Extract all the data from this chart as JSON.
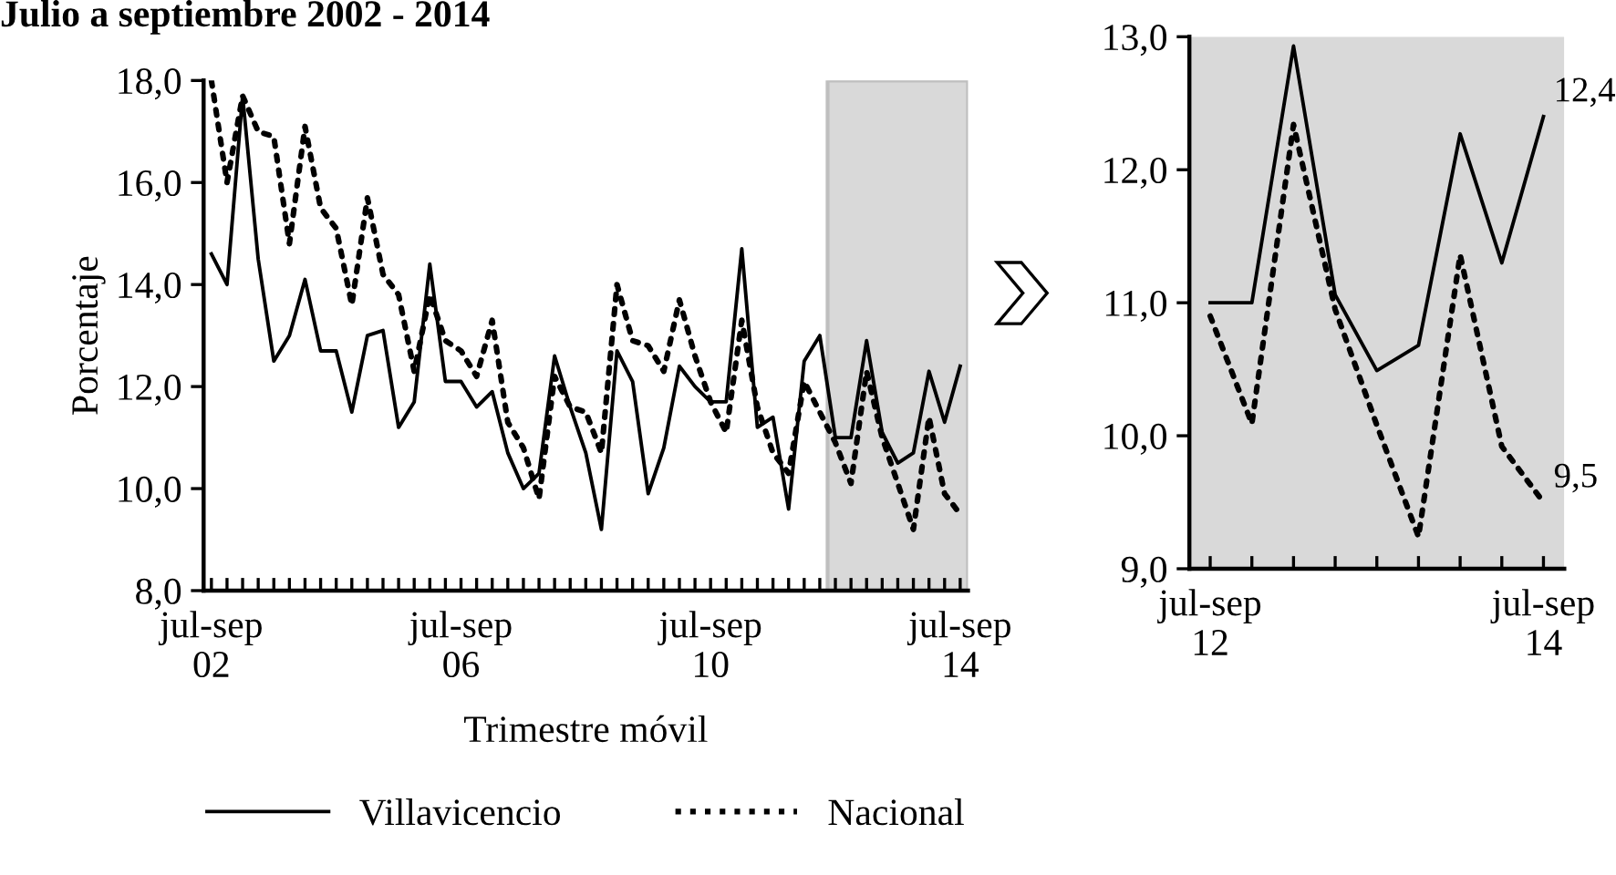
{
  "chart_data": [
    {
      "type": "line",
      "title": "Julio a septiembre 2002 - 2014",
      "xlabel": "Trimestre móvil",
      "ylabel": "Porcentaje",
      "categories": [
        "jul-sep\n02",
        null,
        null,
        null,
        null,
        null,
        null,
        null,
        null,
        null,
        null,
        null,
        null,
        null,
        null,
        null,
        "jul-sep\n06",
        null,
        null,
        null,
        null,
        null,
        null,
        null,
        null,
        null,
        null,
        null,
        null,
        null,
        null,
        null,
        "jul-sep\n10",
        null,
        null,
        null,
        null,
        null,
        null,
        null,
        null,
        null,
        null,
        null,
        null,
        null,
        null,
        null,
        "jul-sep\n14"
      ],
      "series": [
        {
          "name": "Villavicencio",
          "color": "#000000",
          "line_style": "solid",
          "values": [
            14.6,
            14.0,
            17.7,
            14.5,
            12.5,
            13.0,
            14.1,
            12.7,
            12.7,
            11.5,
            13.0,
            13.1,
            11.2,
            11.7,
            14.4,
            12.1,
            12.1,
            11.6,
            11.9,
            10.7,
            10.0,
            10.3,
            12.6,
            11.6,
            10.7,
            9.2,
            12.7,
            12.1,
            9.9,
            10.8,
            12.4,
            12.0,
            11.7,
            11.7,
            14.7,
            11.2,
            11.4,
            9.6,
            12.5,
            13.0,
            11.0,
            11.0,
            12.9,
            11.1,
            10.5,
            10.7,
            12.3,
            11.3,
            12.4
          ]
        },
        {
          "name": "Nacional",
          "color": "#000000",
          "line_style": "dotted",
          "values": [
            18.0,
            16.0,
            17.7,
            17.0,
            16.9,
            14.8,
            17.1,
            15.5,
            15.1,
            13.6,
            15.7,
            14.2,
            13.8,
            12.3,
            13.8,
            12.9,
            12.7,
            12.2,
            13.3,
            11.3,
            10.8,
            9.8,
            12.2,
            11.6,
            11.5,
            10.7,
            14.0,
            12.9,
            12.8,
            12.3,
            13.7,
            12.6,
            11.7,
            11.1,
            13.3,
            11.6,
            10.7,
            10.3,
            12.1,
            11.5,
            10.9,
            10.1,
            12.3,
            11.0,
            10.1,
            9.2,
            11.4,
            9.9,
            9.5
          ]
        }
      ],
      "ylim": [
        8,
        18
      ],
      "yticks": [
        {
          "value": 8,
          "label": "8,0"
        },
        {
          "value": 10,
          "label": "10,0"
        },
        {
          "value": 12,
          "label": "12,0"
        },
        {
          "value": 14,
          "label": "14,0"
        },
        {
          "value": 16,
          "label": "16,0"
        },
        {
          "value": 18,
          "label": "18,0"
        }
      ],
      "grid": false,
      "legend": "bottom",
      "marker": "none"
    },
    {
      "type": "line",
      "categories": [
        "jul-sep\n12",
        null,
        null,
        null,
        null,
        null,
        null,
        null,
        "jul-sep\n14"
      ],
      "series": [
        {
          "color": "#000000",
          "line_style": "solid",
          "values": [
            11.0,
            11.0,
            12.93,
            11.06,
            10.49,
            10.68,
            12.27,
            11.3,
            12.4
          ],
          "value_labels": [
            null,
            null,
            null,
            null,
            null,
            null,
            null,
            null,
            "12,4"
          ]
        },
        {
          "color": "#000000",
          "line_style": "dotted",
          "values": [
            10.9,
            10.09,
            12.34,
            10.95,
            10.08,
            9.24,
            11.36,
            9.92,
            9.5
          ],
          "value_labels": [
            null,
            null,
            null,
            null,
            null,
            null,
            null,
            null,
            "9,5"
          ]
        }
      ],
      "ylim": [
        9,
        13
      ],
      "yticks": [
        {
          "value": 9,
          "label": "9,0"
        },
        {
          "value": 10,
          "label": "10,0"
        },
        {
          "value": 11,
          "label": "11,0"
        },
        {
          "value": 12,
          "label": "12,0"
        },
        {
          "value": 13,
          "label": "13,0"
        }
      ],
      "bands": [
        {
          "axis": "x",
          "from": "jul-sep\n12",
          "to": "jul-sep\n14",
          "color": "#d9d9d9"
        }
      ],
      "grid": false,
      "marker": "none"
    }
  ]
}
